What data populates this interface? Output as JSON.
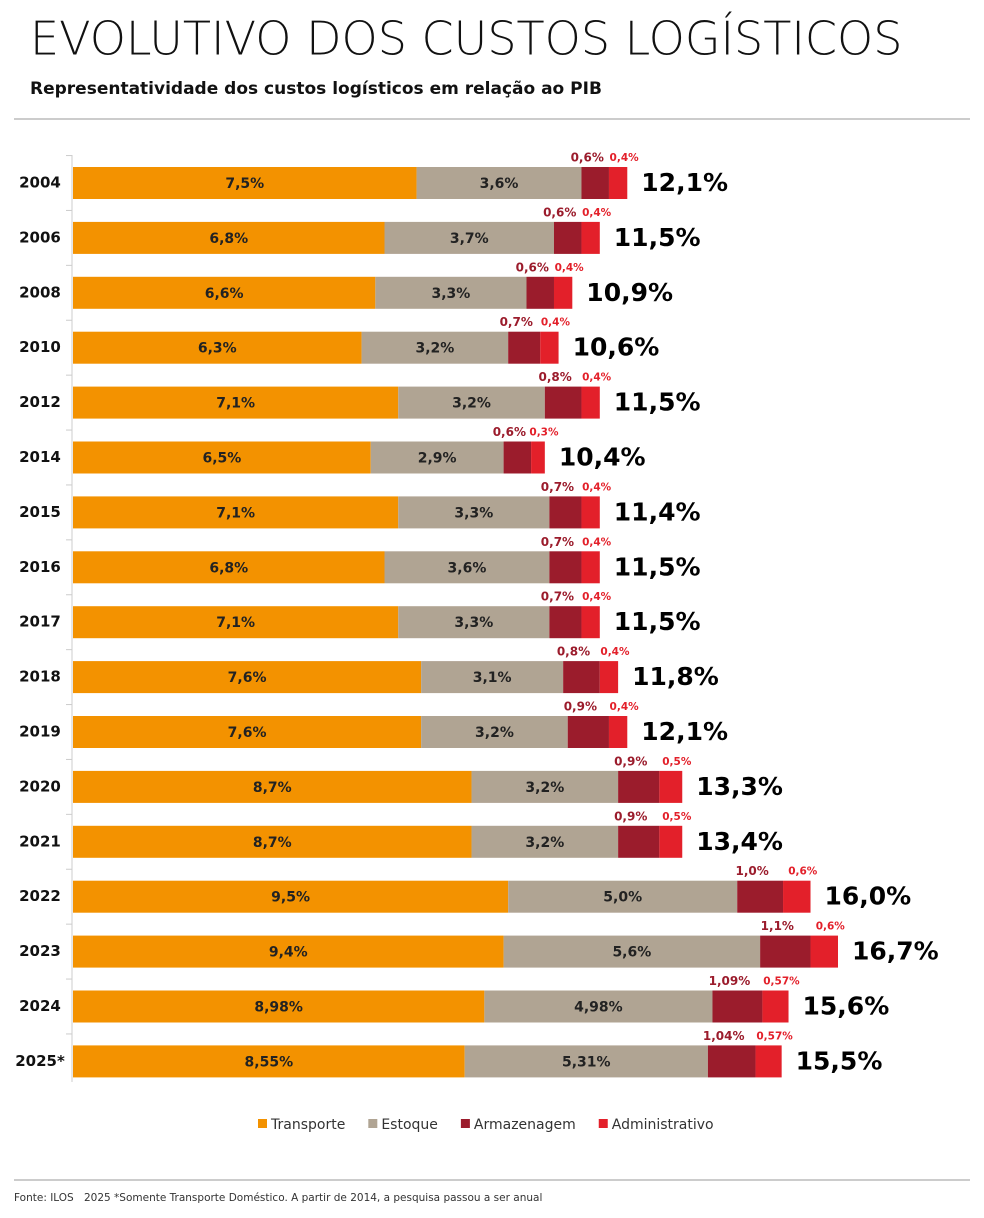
{
  "chart_data": {
    "type": "stacked-bar-horizontal",
    "title": "EVOLUTIVO DOS CUSTOS LOGÍSTICOS",
    "subtitle": "Representatividade dos custos logísticos em relação ao PIB",
    "categories": [
      "2004",
      "2006",
      "2008",
      "2010",
      "2012",
      "2014",
      "2015",
      "2016",
      "2017",
      "2018",
      "2019",
      "2020",
      "2021",
      "2022",
      "2023",
      "2024",
      "2025*"
    ],
    "series": [
      {
        "name": "Transporte",
        "color": "#f39200",
        "values": [
          7.5,
          6.8,
          6.6,
          6.3,
          7.1,
          6.5,
          7.1,
          6.8,
          7.1,
          7.6,
          7.6,
          8.7,
          8.7,
          9.5,
          9.4,
          8.98,
          8.55
        ],
        "value_labels": [
          "7,5%",
          "6,8%",
          "6,6%",
          "6,3%",
          "7,1%",
          "6,5%",
          "7,1%",
          "6,8%",
          "7,1%",
          "7,6%",
          "7,6%",
          "8,7%",
          "8,7%",
          "9,5%",
          "9,4%",
          "8,98%",
          "8,55%"
        ]
      },
      {
        "name": "Estoque",
        "color": "#b0a493",
        "values": [
          3.6,
          3.7,
          3.3,
          3.2,
          3.2,
          2.9,
          3.3,
          3.6,
          3.3,
          3.1,
          3.2,
          3.2,
          3.2,
          5.0,
          5.6,
          4.98,
          5.31
        ],
        "value_labels": [
          "3,6%",
          "3,7%",
          "3,3%",
          "3,2%",
          "3,2%",
          "2,9%",
          "3,3%",
          "3,6%",
          "3,3%",
          "3,1%",
          "3,2%",
          "3,2%",
          "3,2%",
          "5,0%",
          "5,6%",
          "4,98%",
          "5,31%"
        ]
      },
      {
        "name": "Armazenagem",
        "color": "#9b1c2c",
        "values": [
          0.6,
          0.6,
          0.6,
          0.7,
          0.8,
          0.6,
          0.7,
          0.7,
          0.7,
          0.8,
          0.9,
          0.9,
          0.9,
          1.0,
          1.1,
          1.09,
          1.04
        ],
        "value_labels": [
          "0,6%",
          "0,6%",
          "0,6%",
          "0,7%",
          "0,8%",
          "0,6%",
          "0,7%",
          "0,7%",
          "0,7%",
          "0,8%",
          "0,9%",
          "0,9%",
          "0,9%",
          "1,0%",
          "1,1%",
          "1,09%",
          "1,04%"
        ]
      },
      {
        "name": "Administrativo",
        "color": "#e3202a",
        "values": [
          0.4,
          0.4,
          0.4,
          0.4,
          0.4,
          0.3,
          0.4,
          0.4,
          0.4,
          0.4,
          0.4,
          0.5,
          0.5,
          0.6,
          0.6,
          0.57,
          0.57
        ],
        "value_labels": [
          "0,4%",
          "0,4%",
          "0,4%",
          "0,4%",
          "0,4%",
          "0,3%",
          "0,4%",
          "0,4%",
          "0,4%",
          "0,4%",
          "0,4%",
          "0,5%",
          "0,5%",
          "0,6%",
          "0,6%",
          "0,57%",
          "0,57%"
        ]
      }
    ],
    "totals": {
      "values": [
        12.1,
        11.5,
        10.9,
        10.6,
        11.5,
        10.4,
        11.4,
        11.5,
        11.5,
        11.8,
        12.1,
        13.3,
        13.4,
        16.0,
        16.7,
        15.6,
        15.5
      ],
      "value_labels": [
        "12,1%",
        "11,5%",
        "10,9%",
        "10,6%",
        "11,5%",
        "10,4%",
        "11,4%",
        "11,5%",
        "11,5%",
        "11,8%",
        "12,1%",
        "13,3%",
        "13,4%",
        "16,0%",
        "16,7%",
        "15,6%",
        "15,5%"
      ]
    },
    "legend": "bottom",
    "source": "Fonte: ILOS",
    "note": "2025 *Somente Transporte Doméstico. A partir de 2014, a pesquisa passou a ser anual"
  }
}
